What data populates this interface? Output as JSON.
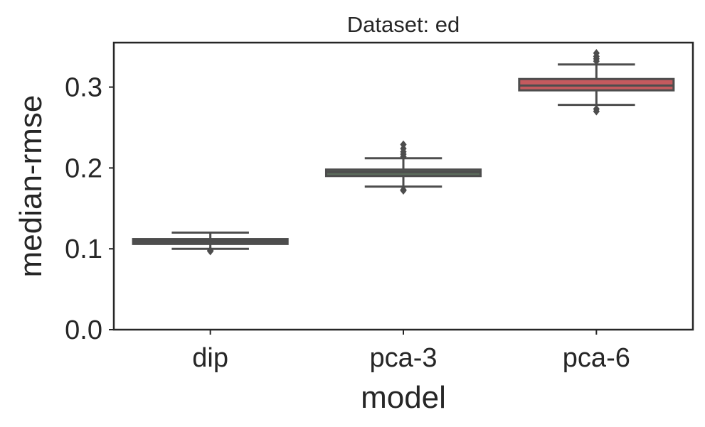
{
  "chart_data": {
    "type": "box",
    "title": "Dataset: ed",
    "xlabel": "model",
    "ylabel": "median-rmse",
    "ylim": [
      0.0,
      0.355
    ],
    "yticks": [
      0.0,
      0.1,
      0.2,
      0.3
    ],
    "ytick_labels": [
      "0.0",
      "0.1",
      "0.2",
      "0.3"
    ],
    "grid": false,
    "categories": [
      "dip",
      "pca-3",
      "pca-6"
    ],
    "boxes": [
      {
        "label": "dip",
        "color": "#4f4f4f",
        "whisker_low": 0.1,
        "q1": 0.106,
        "median": 0.11,
        "q3": 0.112,
        "whisker_high": 0.12,
        "outliers": [
          0.098,
          0.097
        ]
      },
      {
        "label": "pca-3",
        "color": "#5b6b5b",
        "whisker_low": 0.177,
        "q1": 0.19,
        "median": 0.195,
        "q3": 0.198,
        "whisker_high": 0.212,
        "outliers": [
          0.172,
          0.173,
          0.214,
          0.217,
          0.22,
          0.224,
          0.229
        ]
      },
      {
        "label": "pca-6",
        "color": "#c45a5e",
        "whisker_low": 0.278,
        "q1": 0.296,
        "median": 0.302,
        "q3": 0.31,
        "whisker_high": 0.328,
        "outliers": [
          0.27,
          0.273,
          0.332,
          0.335,
          0.338,
          0.342
        ]
      }
    ]
  }
}
